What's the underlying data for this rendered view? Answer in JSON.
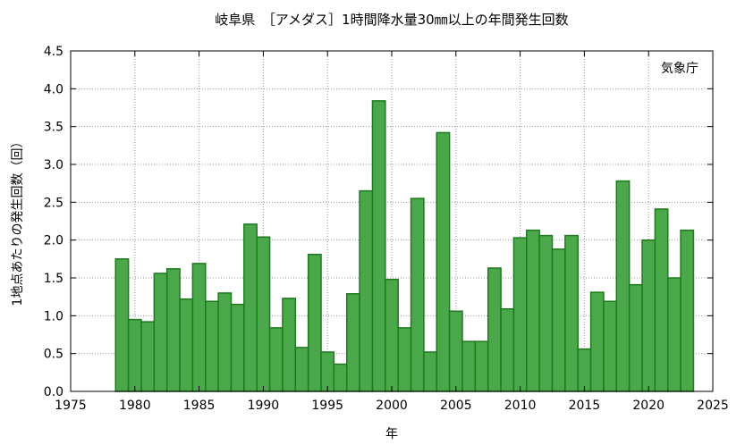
{
  "chart_data": {
    "type": "bar",
    "title": "岐阜県　［アメダス］1時間降水量30㎜以上の年間発生回数",
    "source_label": "気象庁",
    "xlabel": "年",
    "ylabel": "1地点あたりの発生回数（回）",
    "xlim": [
      1975,
      2025
    ],
    "ylim": [
      0,
      4.5
    ],
    "x_ticks": [
      "1975",
      "1980",
      "1985",
      "1990",
      "1995",
      "2000",
      "2005",
      "2010",
      "2015",
      "2020",
      "2025"
    ],
    "y_ticks": [
      "0.0",
      "0.5",
      "1.0",
      "1.5",
      "2.0",
      "2.5",
      "3.0",
      "3.5",
      "4.0",
      "4.5"
    ],
    "grid": true,
    "bar_color": "#4aa84a",
    "bar_edge_color": "#1e7a1e",
    "categories": [
      1979,
      1980,
      1981,
      1982,
      1983,
      1984,
      1985,
      1986,
      1987,
      1988,
      1989,
      1990,
      1991,
      1992,
      1993,
      1994,
      1995,
      1996,
      1997,
      1998,
      1999,
      2000,
      2001,
      2002,
      2003,
      2004,
      2005,
      2006,
      2007,
      2008,
      2009,
      2010,
      2011,
      2012,
      2013,
      2014,
      2015,
      2016,
      2017,
      2018,
      2019,
      2020,
      2021,
      2022,
      2023
    ],
    "values": [
      1.75,
      0.95,
      0.92,
      1.56,
      1.62,
      1.22,
      1.69,
      1.19,
      1.3,
      1.15,
      2.21,
      2.04,
      0.84,
      1.23,
      0.58,
      1.81,
      0.52,
      0.36,
      1.29,
      2.65,
      3.84,
      1.48,
      0.84,
      2.55,
      0.52,
      3.42,
      1.06,
      0.66,
      0.66,
      1.63,
      1.09,
      2.03,
      2.13,
      2.06,
      1.88,
      2.06,
      0.56,
      1.31,
      1.19,
      2.78,
      1.41,
      2.0,
      2.41,
      1.5,
      2.13
    ]
  }
}
